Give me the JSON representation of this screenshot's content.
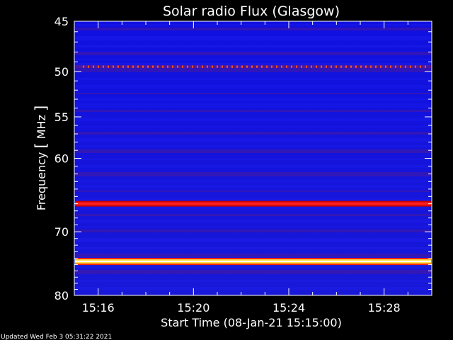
{
  "chart_data": {
    "type": "heatmap",
    "title": "Solar radio Flux (Glasgow)",
    "xlabel": "Start Time (08-Jan-21 15:15:00)",
    "ylabel_main": "Frequency",
    "ylabel_unit": "MHz",
    "y_scale": "log",
    "y_inverted": true,
    "ylim_mhz": [
      45,
      80
    ],
    "y_ticks": [
      45,
      50,
      55,
      60,
      70,
      80
    ],
    "y_tick_labels": [
      "45",
      "50",
      "55",
      "60",
      "70",
      "80"
    ],
    "xlim_hhmm": [
      "15:15:00",
      "15:30:00"
    ],
    "x_ticks_hhmm": [
      "15:16",
      "15:20",
      "15:24",
      "15:28"
    ],
    "x_tick_labels": [
      "15:16",
      "15:20",
      "15:24",
      "15:28"
    ],
    "colormap": "blue-red-yellow-white",
    "background_level": "low (blue)",
    "emission_bands": [
      {
        "freq_mhz": 49.5,
        "intensity": "moderate",
        "pattern": "dotted / intermittent"
      },
      {
        "freq_mhz": 66.0,
        "intensity": "high",
        "pattern": "continuous"
      },
      {
        "freq_mhz": 74.5,
        "intensity": "very high",
        "pattern": "continuous"
      }
    ]
  },
  "footer": {
    "updated_text": "Updated Wed Feb  3 05:31:22 2021"
  }
}
